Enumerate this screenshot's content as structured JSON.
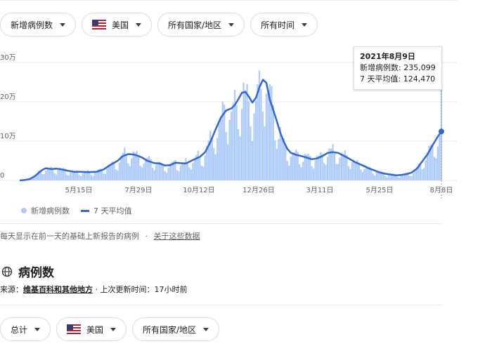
{
  "filters_top": [
    {
      "label": "新增病例数"
    },
    {
      "label": "美国",
      "flag": true
    },
    {
      "label": "所有国家/地区"
    },
    {
      "label": "所有时间"
    }
  ],
  "tooltip": {
    "date": "2021年8月9日",
    "line1": "新增病例数: 235,099",
    "line2": "7 天平均值: 124,470"
  },
  "legend": {
    "bars": "新增病例数",
    "line": "7 天平均值"
  },
  "note": {
    "text": "每天显示在前一天的基础上新报告的病例",
    "sep": "·",
    "link": "关于这些数据"
  },
  "section": {
    "title": "病例数"
  },
  "source": {
    "prefix": "来源：",
    "link": "维基百科和其他地方",
    "suffix": " · 上次更新时间：17小时前"
  },
  "filters_bottom": [
    {
      "label": "总计"
    },
    {
      "label": "美国",
      "flag": true
    },
    {
      "label": "所有国家/地区"
    }
  ],
  "colors": {
    "bars": "#aecbfa",
    "line": "#3367d6"
  },
  "chart_data": {
    "type": "bar",
    "y_ticks": [
      {
        "label": "0",
        "value": 0
      },
      {
        "label": "10万",
        "value": 100000
      },
      {
        "label": "20万",
        "value": 200000
      },
      {
        "label": "30万",
        "value": 300000
      }
    ],
    "x_ticks": [
      "5月15日",
      "7月29日",
      "10月12日",
      "12月26日",
      "3月11日",
      "5月25日",
      "8月8日"
    ],
    "ylim": [
      0,
      300000
    ],
    "series": [
      {
        "name": "新增病例数",
        "kind": "bars"
      },
      {
        "name": "7 天平均值",
        "kind": "line",
        "points": [
          [
            0,
            0
          ],
          [
            3,
            1000
          ],
          [
            6,
            4000
          ],
          [
            9,
            12000
          ],
          [
            11,
            20000
          ],
          [
            13,
            27000
          ],
          [
            15,
            31000
          ],
          [
            18,
            29000
          ],
          [
            21,
            30000
          ],
          [
            24,
            28000
          ],
          [
            27,
            25000
          ],
          [
            31,
            22000
          ],
          [
            35,
            22000
          ],
          [
            39,
            21000
          ],
          [
            44,
            22000
          ],
          [
            48,
            28000
          ],
          [
            52,
            40000
          ],
          [
            56,
            50000
          ],
          [
            59,
            62000
          ],
          [
            62,
            67000
          ],
          [
            65,
            66000
          ],
          [
            68,
            62000
          ],
          [
            70,
            58000
          ],
          [
            73,
            50000
          ],
          [
            77,
            44000
          ],
          [
            80,
            43000
          ],
          [
            83,
            38000
          ],
          [
            86,
            39000
          ],
          [
            89,
            45000
          ],
          [
            92,
            44000
          ],
          [
            95,
            43000
          ],
          [
            99,
            52000
          ],
          [
            103,
            60000
          ],
          [
            106,
            72000
          ],
          [
            109,
            98000
          ],
          [
            112,
            130000
          ],
          [
            115,
            160000
          ],
          [
            118,
            178000
          ],
          [
            121,
            183000
          ],
          [
            123,
            192000
          ],
          [
            125,
            207000
          ],
          [
            127,
            223000
          ],
          [
            129,
            225000
          ],
          [
            131,
            213000
          ],
          [
            133,
            198000
          ],
          [
            135,
            210000
          ],
          [
            137,
            237000
          ],
          [
            139,
            256000
          ],
          [
            141,
            248000
          ],
          [
            143,
            205000
          ],
          [
            145,
            178000
          ],
          [
            147,
            150000
          ],
          [
            149,
            120000
          ],
          [
            151,
            98000
          ],
          [
            153,
            80000
          ],
          [
            155,
            70000
          ],
          [
            158,
            65000
          ],
          [
            161,
            62000
          ],
          [
            164,
            58000
          ],
          [
            167,
            54000
          ],
          [
            170,
            56000
          ],
          [
            173,
            62000
          ],
          [
            176,
            70000
          ],
          [
            179,
            72000
          ],
          [
            182,
            70000
          ],
          [
            185,
            63000
          ],
          [
            188,
            56000
          ],
          [
            191,
            48000
          ],
          [
            194,
            42000
          ],
          [
            197,
            36000
          ],
          [
            200,
            30000
          ],
          [
            203,
            25000
          ],
          [
            206,
            20000
          ],
          [
            209,
            17000
          ],
          [
            212,
            15000
          ],
          [
            215,
            13000
          ],
          [
            218,
            14000
          ],
          [
            221,
            16000
          ],
          [
            224,
            20000
          ],
          [
            227,
            30000
          ],
          [
            230,
            48000
          ],
          [
            233,
            66000
          ],
          [
            236,
            90000
          ],
          [
            239,
            112000
          ],
          [
            241,
            124470
          ]
        ]
      }
    ]
  }
}
